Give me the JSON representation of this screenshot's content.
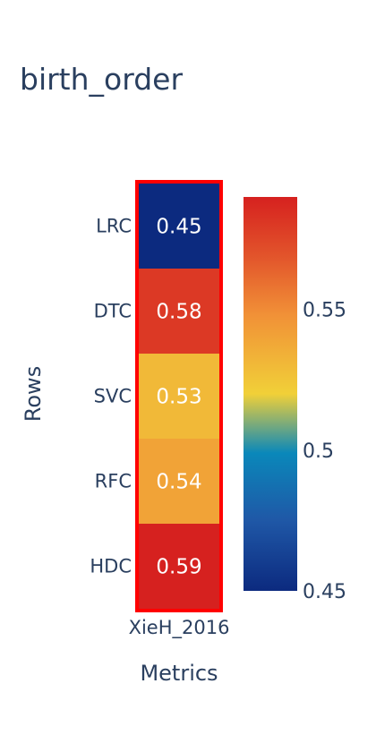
{
  "chart_data": {
    "type": "heatmap",
    "title": "birth_order",
    "xlabel": "Metrics",
    "ylabel": "Rows",
    "x": [
      "XieH_2016"
    ],
    "y": [
      "LRC",
      "DTC",
      "SVC",
      "RFC",
      "HDC"
    ],
    "z": [
      [
        0.45
      ],
      [
        0.58
      ],
      [
        0.53
      ],
      [
        0.54
      ],
      [
        0.59
      ]
    ],
    "cell_labels": [
      [
        "0.45"
      ],
      [
        "0.58"
      ],
      [
        "0.53"
      ],
      [
        "0.54"
      ],
      [
        "0.59"
      ]
    ],
    "zlim": [
      0.45,
      0.59
    ],
    "colorbar": {
      "tickvals": [
        0.45,
        0.5,
        0.55
      ],
      "ticktext": [
        "0.45",
        "0.5",
        "0.55"
      ]
    },
    "highlight": {
      "column": "XieH_2016",
      "color": "#ff0000"
    },
    "colorscale": [
      [
        0.0,
        "#0c2a7f"
      ],
      [
        0.18,
        "#1f58a7"
      ],
      [
        0.35,
        "#0a88ba"
      ],
      [
        0.5,
        "#f1d038"
      ],
      [
        0.7,
        "#f19137"
      ],
      [
        0.85,
        "#e2542b"
      ],
      [
        1.0,
        "#d6211f"
      ]
    ]
  }
}
